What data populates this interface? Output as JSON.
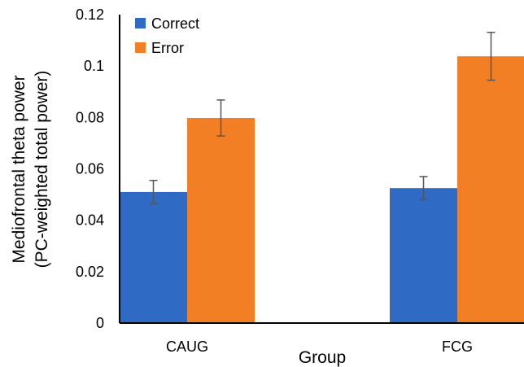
{
  "chart_data": {
    "type": "bar",
    "title": "",
    "xlabel": "Group",
    "ylabel_lines": [
      "Mediofrontal theta power",
      "(PC-weighted total power)"
    ],
    "categories": [
      "CAUG",
      "FCG"
    ],
    "series": [
      {
        "name": "Correct",
        "color": "#2f6bc4",
        "values": [
          0.051,
          0.0525
        ],
        "errors": [
          0.0045,
          0.0045
        ]
      },
      {
        "name": "Error",
        "color": "#f37f24",
        "values": [
          0.0798,
          0.1038
        ],
        "errors": [
          0.007,
          0.0093
        ]
      }
    ],
    "ylim": [
      0,
      0.12
    ],
    "yticks": [
      0,
      0.02,
      0.04,
      0.06,
      0.08,
      0.1,
      0.12
    ],
    "ytick_labels": [
      "0",
      "0.02",
      "0.04",
      "0.06",
      "0.08",
      "0.1",
      "0.12"
    ],
    "grid": false,
    "legend_position": "top-left",
    "axis_color": "#000000",
    "errorbar_color": "#555555"
  }
}
